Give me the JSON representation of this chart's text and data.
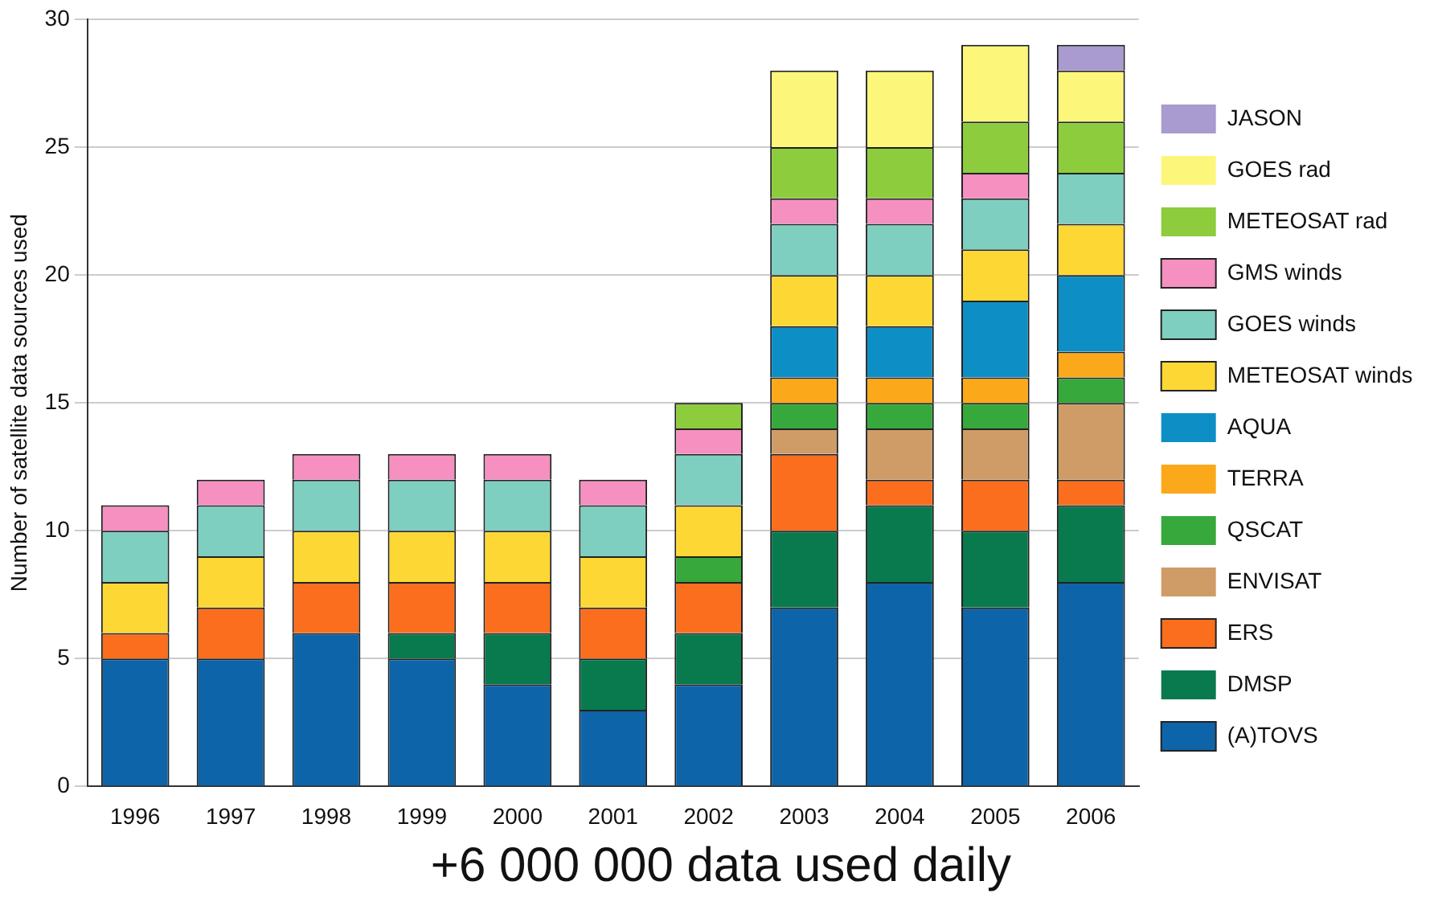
{
  "chart_data": {
    "type": "bar",
    "stacked": true,
    "ylabel": "Number of satellite data sources used",
    "categories": [
      "1996",
      "1997",
      "1998",
      "1999",
      "2000",
      "2001",
      "2002",
      "2003",
      "2004",
      "2005",
      "2006"
    ],
    "ylim": [
      0,
      30
    ],
    "yticks": [
      0,
      5,
      10,
      15,
      20,
      25,
      30
    ],
    "grid": "y",
    "legend": "right",
    "annotations": [
      "+6 000 000 data used daily"
    ],
    "series": [
      {
        "name": "(A)TOVS",
        "color": "#0e64a8",
        "values": [
          5,
          5,
          6,
          5,
          4,
          3,
          4,
          7,
          8,
          7,
          8
        ]
      },
      {
        "name": "DMSP",
        "color": "#087a4e",
        "values": [
          0,
          0,
          0,
          1,
          2,
          2,
          2,
          3,
          3,
          3,
          3
        ]
      },
      {
        "name": "ERS",
        "color": "#fa6e1e",
        "values": [
          1,
          2,
          2,
          2,
          2,
          2,
          2,
          3,
          1,
          2,
          1
        ]
      },
      {
        "name": "ENVISAT",
        "color": "#cf9c68",
        "values": [
          0,
          0,
          0,
          0,
          0,
          0,
          0,
          1,
          2,
          2,
          3
        ]
      },
      {
        "name": "QSCAT",
        "color": "#37a83c",
        "values": [
          0,
          0,
          0,
          0,
          0,
          0,
          1,
          1,
          1,
          1,
          1
        ]
      },
      {
        "name": "TERRA",
        "color": "#fba91a",
        "values": [
          0,
          0,
          0,
          0,
          0,
          0,
          0,
          1,
          1,
          1,
          1
        ]
      },
      {
        "name": "AQUA",
        "color": "#0d8fc6",
        "values": [
          0,
          0,
          0,
          0,
          0,
          0,
          0,
          2,
          2,
          3,
          3
        ]
      },
      {
        "name": "METEOSAT winds",
        "color": "#fdd835",
        "values": [
          2,
          2,
          2,
          2,
          2,
          2,
          2,
          2,
          2,
          2,
          2
        ]
      },
      {
        "name": "GOES winds",
        "color": "#7fcfc0",
        "values": [
          2,
          2,
          2,
          2,
          2,
          2,
          2,
          2,
          2,
          2,
          2
        ]
      },
      {
        "name": "GMS winds",
        "color": "#f590c0",
        "values": [
          1,
          1,
          1,
          1,
          1,
          1,
          1,
          1,
          1,
          1,
          0
        ]
      },
      {
        "name": "METEOSAT rad",
        "color": "#8dcc3c",
        "values": [
          0,
          0,
          0,
          0,
          0,
          0,
          1,
          2,
          2,
          2,
          2
        ]
      },
      {
        "name": "GOES rad",
        "color": "#fcf77a",
        "values": [
          0,
          0,
          0,
          0,
          0,
          0,
          0,
          3,
          3,
          3,
          2
        ]
      },
      {
        "name": "JASON",
        "color": "#a99ad0",
        "values": [
          0,
          0,
          0,
          0,
          0,
          0,
          0,
          0,
          0,
          0,
          1
        ]
      }
    ]
  }
}
